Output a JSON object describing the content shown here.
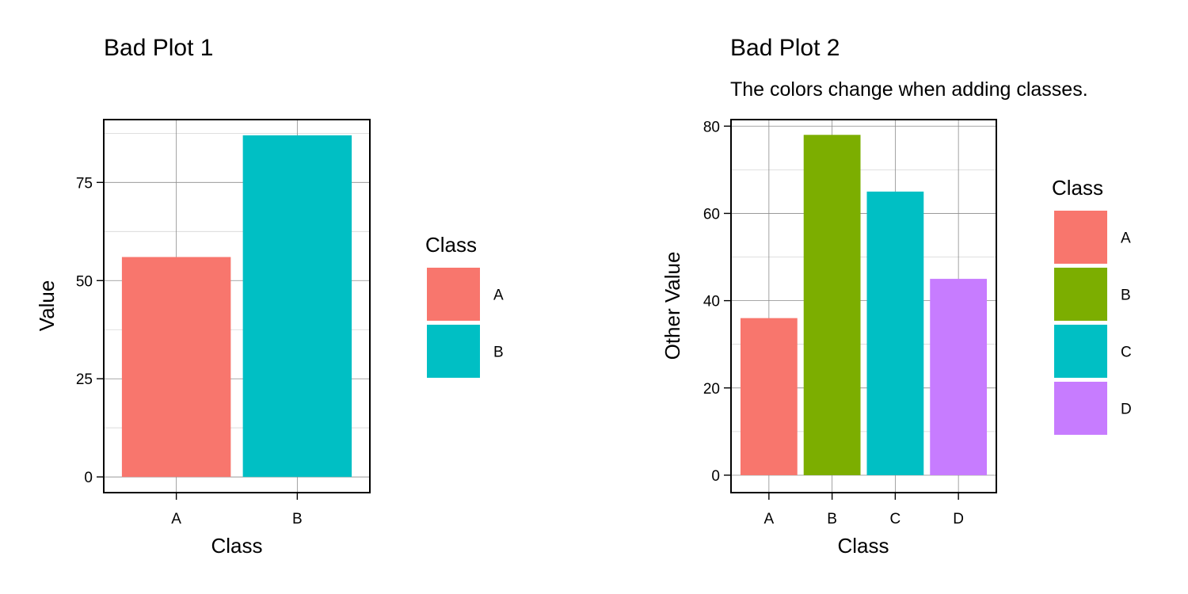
{
  "chart_data": [
    {
      "type": "bar",
      "title": "Bad Plot 1",
      "subtitle": "",
      "xlabel": "Class",
      "ylabel": "Value",
      "categories": [
        "A",
        "B"
      ],
      "values": [
        56,
        87
      ],
      "colors": [
        "#F8766D",
        "#00BFC4"
      ],
      "ylim": [
        -4,
        91
      ],
      "yticks": [
        0,
        25,
        50,
        75
      ],
      "grid": true,
      "legend": {
        "title": "Class",
        "placement": "right",
        "items": [
          {
            "label": "A",
            "color": "#F8766D"
          },
          {
            "label": "B",
            "color": "#00BFC4"
          }
        ]
      }
    },
    {
      "type": "bar",
      "title": "Bad Plot 2",
      "subtitle": "The colors change when adding classes.",
      "xlabel": "Class",
      "ylabel": "Other Value",
      "categories": [
        "A",
        "B",
        "C",
        "D"
      ],
      "values": [
        36,
        78,
        65,
        45
      ],
      "colors": [
        "#F8766D",
        "#7CAE00",
        "#00BFC4",
        "#C77CFF"
      ],
      "ylim": [
        -4,
        81.5
      ],
      "yticks": [
        0,
        20,
        40,
        60,
        80
      ],
      "grid": true,
      "legend": {
        "title": "Class",
        "placement": "right",
        "items": [
          {
            "label": "A",
            "color": "#F8766D"
          },
          {
            "label": "B",
            "color": "#7CAE00"
          },
          {
            "label": "C",
            "color": "#00BFC4"
          },
          {
            "label": "D",
            "color": "#C77CFF"
          }
        ]
      }
    }
  ]
}
